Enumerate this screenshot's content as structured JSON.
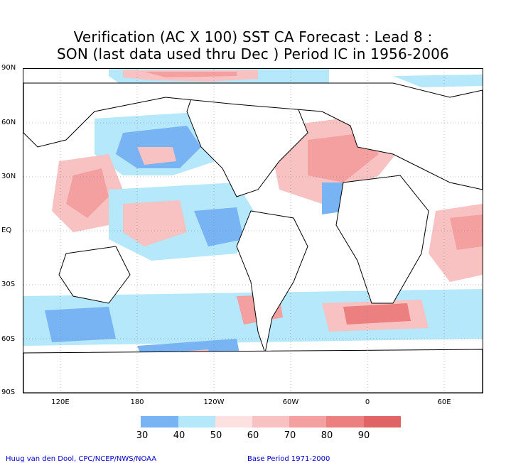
{
  "title_line1": "Verification (AC X 100) SST CA Forecast : Lead 8 :",
  "title_line2": "SON (last data used thru Dec ) Period IC in 1956-2006",
  "lat_labels": [
    "90N",
    "60N",
    "30N",
    "EQ",
    "30S",
    "60S",
    "90S"
  ],
  "lon_labels": [
    "120E",
    "180",
    "120W",
    "60W",
    "0",
    "60E"
  ],
  "legend": {
    "labels": [
      "30",
      "40",
      "50",
      "60",
      "70",
      "80",
      "90"
    ],
    "colors": [
      "#78b4f4",
      "#b4e8fa",
      "#fde0e0",
      "#f9c2c2",
      "#f4a0a0",
      "#ec8080",
      "#e06464"
    ]
  },
  "footer_left": "Huug van den Dool, CPC/NCEP/NWS/NOAA",
  "footer_right": "Base Period 1971-2000",
  "colors": {
    "accent": "#0000cc",
    "coastline": "#000000",
    "grid": "#888888"
  }
}
